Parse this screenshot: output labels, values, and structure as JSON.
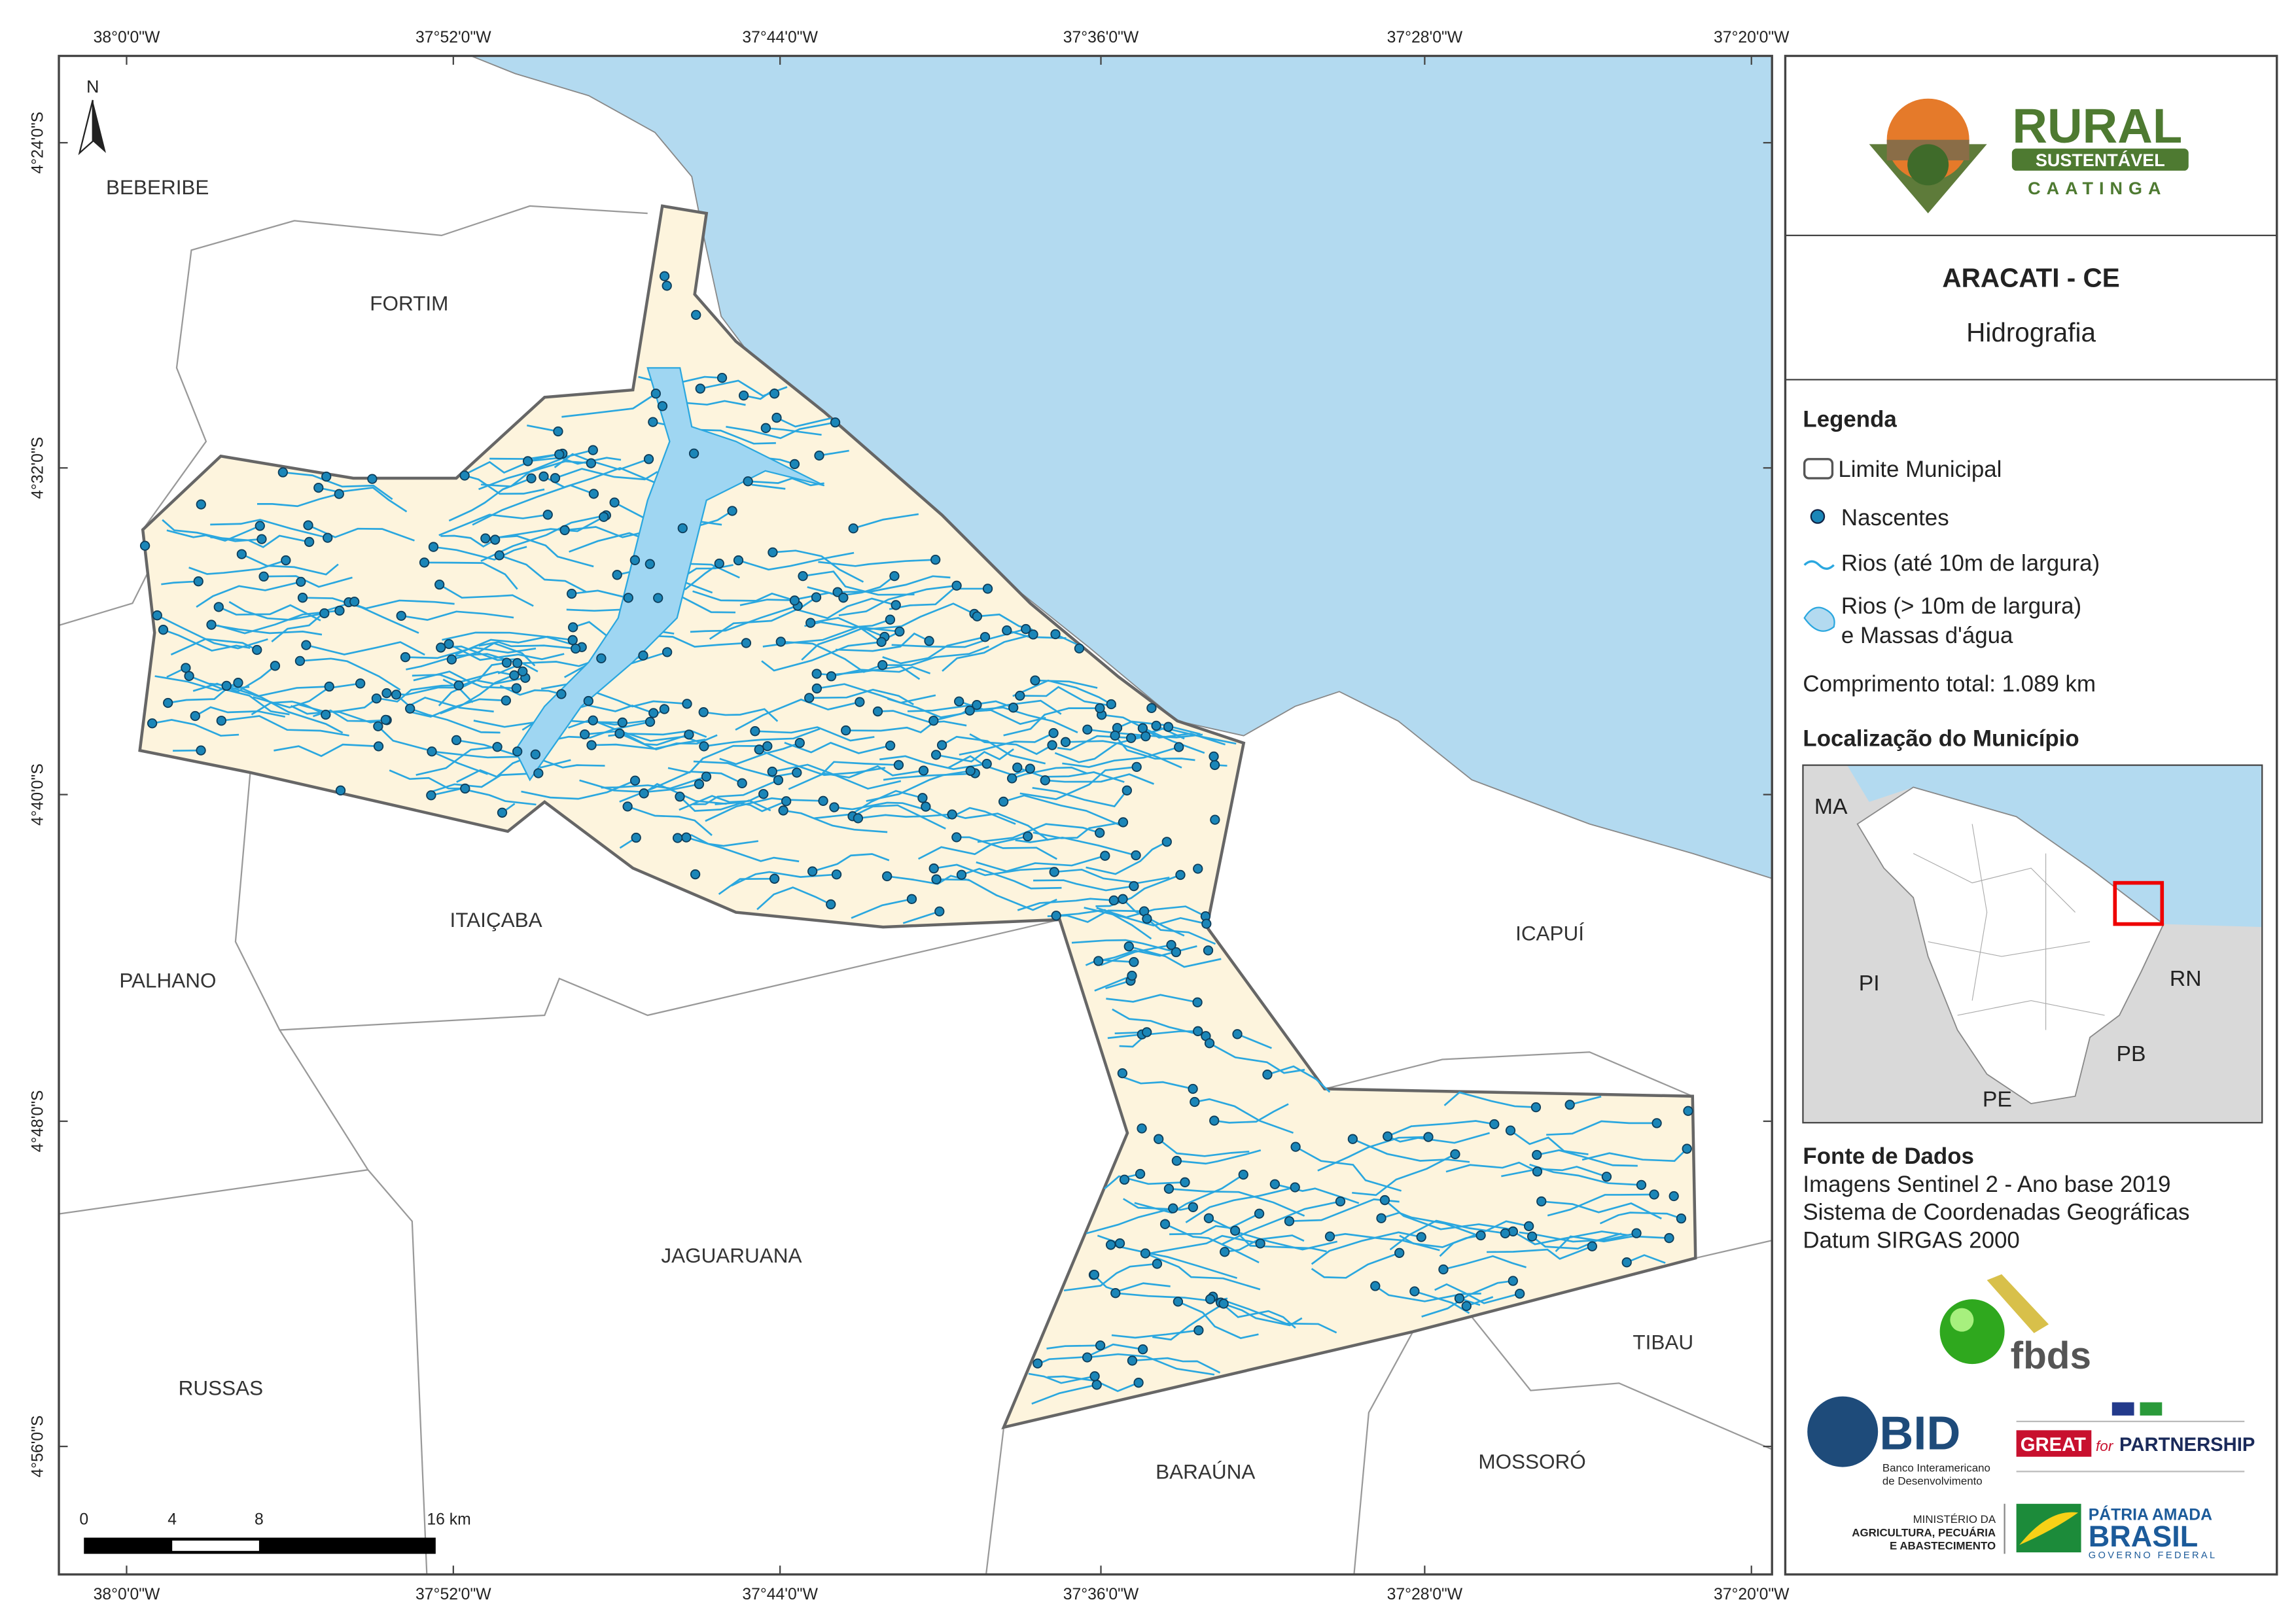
{
  "map": {
    "top_labels": [
      "38°0'0\"W",
      "37°52'0\"W",
      "37°44'0\"W",
      "37°36'0\"W",
      "37°28'0\"W",
      "37°20'0\"W"
    ],
    "left_labels": [
      "4°24'0\"S",
      "4°32'0\"S",
      "4°40'0\"S",
      "4°48'0\"S",
      "4°56'0\"S"
    ],
    "north": "N",
    "places": [
      "BEBERIBE",
      "FORTIM",
      "ITAIÇABA",
      "PALHANO",
      "ICAPUÍ",
      "JAGUARUANA",
      "RUSSAS",
      "TIBAU",
      "BARAÚNA",
      "MOSSORÓ"
    ],
    "scale_labels": [
      "0",
      "4",
      "8",
      "16 km"
    ]
  },
  "panel": {
    "logo": {
      "rural": "RURAL",
      "sustentavel": "SUSTENTÁVEL",
      "caatinga": "CAATINGA"
    },
    "title": "ARACATI - CE",
    "subtitle": "Hidrografia",
    "legend": {
      "title": "Legenda",
      "items": [
        "Limite Municipal",
        "Nascentes",
        "Rios (até 10m de largura)",
        "Rios (> 10m de largura)",
        "e Massas d'água"
      ],
      "total": "Comprimento total:  1.089 km"
    },
    "location": {
      "title": "Localização do Município",
      "labels": [
        "MA",
        "PI",
        "RN",
        "PB",
        "PE"
      ]
    },
    "sources": {
      "title": "Fonte de Dados",
      "lines": [
        "Imagens Sentinel 2 - Ano base 2019",
        "Sistema de Coordenadas Geográficas",
        "Datum SIRGAS 2000"
      ]
    },
    "partners": {
      "fbds": "fbds",
      "bid": "BID",
      "bid_lines": [
        "Banco Interamericano",
        "de Desenvolvimento"
      ],
      "great": "GREAT",
      "for": "for",
      "partnership": "PARTNERSHIP",
      "ministry": [
        "MINISTÉRIO DA",
        "AGRICULTURA, PECUÁRIA",
        "E ABASTECIMENTO"
      ],
      "brasil": [
        "PÁTRIA AMADA",
        "BRASIL",
        "GOVERNO FEDERAL"
      ]
    }
  }
}
